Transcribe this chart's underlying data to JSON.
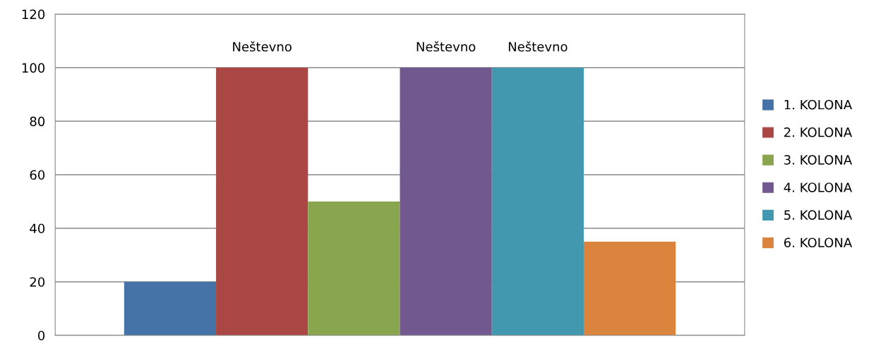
{
  "chart_data": {
    "type": "bar",
    "categories": [
      null
    ],
    "series": [
      {
        "name": "1. KOLONA",
        "color": "#4572a7",
        "values": [
          20
        ],
        "value_labels": [
          null
        ]
      },
      {
        "name": "2. KOLONA",
        "color": "#aa4643",
        "values": [
          100
        ],
        "value_labels": [
          "Neštevno"
        ]
      },
      {
        "name": "3. KOLONA",
        "color": "#89a54e",
        "values": [
          50
        ],
        "value_labels": [
          null
        ]
      },
      {
        "name": "4. KOLONA",
        "color": "#71588f",
        "values": [
          100
        ],
        "value_labels": [
          "Neštevno"
        ]
      },
      {
        "name": "5. KOLONA",
        "color": "#4198af",
        "values": [
          100
        ],
        "value_labels": [
          "Neštevno"
        ]
      },
      {
        "name": "6. KOLONA",
        "color": "#db843d",
        "values": [
          35
        ],
        "value_labels": [
          null
        ]
      }
    ],
    "ylim": [
      0,
      120
    ],
    "yticks": [
      0,
      20,
      40,
      60,
      80,
      100,
      120
    ],
    "grid": "y",
    "legend": "right"
  }
}
